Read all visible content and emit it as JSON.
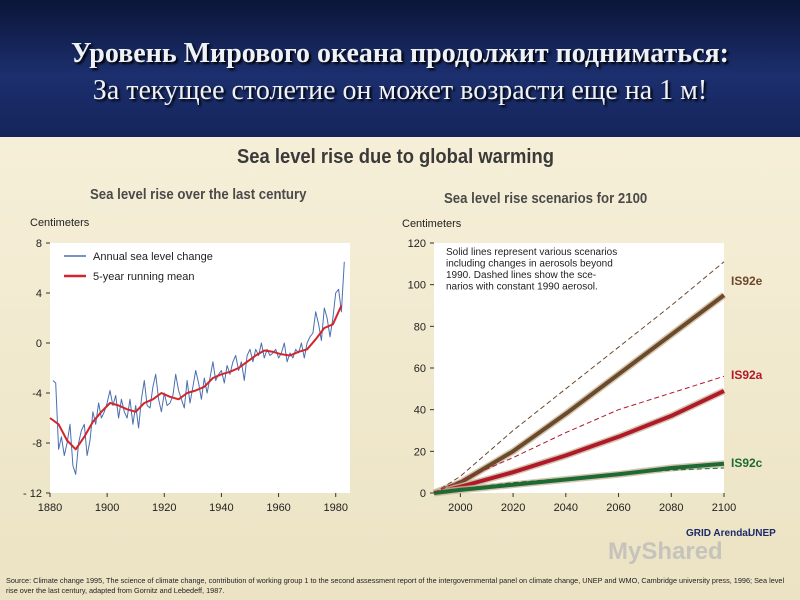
{
  "header": {
    "line1": "Уровень Мирового океана продолжит подниматься:",
    "line2": "За текущее столетие  он может возрасти еще на 1 м!"
  },
  "figure": {
    "title": "Sea level rise due to global warming",
    "source": "Source: Climate change 1995, The science of climate change, contribution of working group 1 to the second assessment report of the intergovernmental panel on climate change, UNEP and WMO, Cambridge university press,  1996; Sea level rise over the last century, adapted from Gornitz and Lebedeff, 1987.",
    "logo_text": "GRID Arendal",
    "logo_unep": "UNEP",
    "watermark": "MyShared"
  },
  "colors": {
    "left_annual": "#4a6fb0",
    "left_mean": "#d0262c",
    "is92e": "#6b4a2c",
    "is92a": "#b0192a",
    "is92c": "#1e6a34",
    "plot_bg": "#ffffff"
  },
  "chart_data": [
    {
      "type": "line",
      "title": "Sea level rise over the last century",
      "ylabel": "Centimeters",
      "xlabel": "",
      "xlim": [
        1880,
        1985
      ],
      "ylim": [
        -12,
        8
      ],
      "xticks": [
        1880,
        1900,
        1920,
        1940,
        1960,
        1980
      ],
      "yticks": [
        8,
        4,
        0,
        -4,
        -8,
        -12
      ],
      "ytick_labels": [
        "8",
        "4",
        "0",
        "-4",
        "-8",
        "- 12"
      ],
      "legend_position": "top-left",
      "grid": false,
      "series": [
        {
          "name": "Annual sea level change",
          "x": [
            1881,
            1882,
            1883,
            1884,
            1885,
            1886,
            1887,
            1888,
            1889,
            1890,
            1891,
            1892,
            1893,
            1894,
            1895,
            1896,
            1897,
            1898,
            1899,
            1900,
            1901,
            1902,
            1903,
            1904,
            1905,
            1906,
            1907,
            1908,
            1909,
            1910,
            1911,
            1912,
            1913,
            1914,
            1915,
            1916,
            1917,
            1918,
            1919,
            1920,
            1921,
            1922,
            1923,
            1924,
            1925,
            1926,
            1927,
            1928,
            1929,
            1930,
            1931,
            1932,
            1933,
            1934,
            1935,
            1936,
            1937,
            1938,
            1939,
            1940,
            1941,
            1942,
            1943,
            1944,
            1945,
            1946,
            1947,
            1948,
            1949,
            1950,
            1951,
            1952,
            1953,
            1954,
            1955,
            1956,
            1957,
            1958,
            1959,
            1960,
            1961,
            1962,
            1963,
            1964,
            1965,
            1966,
            1967,
            1968,
            1969,
            1970,
            1971,
            1972,
            1973,
            1974,
            1975,
            1976,
            1977,
            1978,
            1979,
            1980,
            1981,
            1982,
            1983
          ],
          "values": [
            -3,
            -3.2,
            -8.5,
            -7.5,
            -9,
            -8,
            -6.5,
            -9.8,
            -10.5,
            -8,
            -7,
            -6.5,
            -9,
            -7.8,
            -5.5,
            -6.5,
            -4.8,
            -6,
            -5.5,
            -4.8,
            -3.8,
            -5,
            -4.2,
            -6,
            -4.5,
            -5.5,
            -6,
            -4.5,
            -6.5,
            -5,
            -6.8,
            -4.5,
            -3,
            -5,
            -5.2,
            -3.5,
            -2.5,
            -4.5,
            -5.5,
            -4,
            -5,
            -4.8,
            -4.2,
            -2.5,
            -3.8,
            -4.5,
            -5.2,
            -3,
            -4.8,
            -3.5,
            -2.2,
            -3.2,
            -4.5,
            -2.8,
            -4,
            -2.8,
            -1.5,
            -3,
            -2.5,
            -2.2,
            -3.2,
            -1.8,
            -2.5,
            -1.5,
            -1,
            -2.2,
            -1.5,
            -3,
            -1,
            -0.5,
            -1.5,
            -0.5,
            -1,
            0,
            -1.2,
            -0.5,
            -1,
            -0.8,
            -0.5,
            -1.2,
            -0.8,
            0,
            -1.5,
            -0.8,
            -1.2,
            -0.5,
            -0.8,
            0,
            -1.2,
            0,
            0.5,
            0.8,
            2.5,
            1.5,
            0.2,
            2.8,
            2,
            0.5,
            2,
            4,
            4.3,
            2.5,
            6.5
          ]
        },
        {
          "name": "5-year running mean",
          "x": [
            1880,
            1883,
            1886,
            1889,
            1892,
            1895,
            1898,
            1901,
            1904,
            1907,
            1910,
            1913,
            1916,
            1919,
            1922,
            1925,
            1928,
            1931,
            1934,
            1937,
            1940,
            1943,
            1946,
            1949,
            1952,
            1955,
            1958,
            1961,
            1964,
            1967,
            1970,
            1973,
            1976,
            1979,
            1982
          ],
          "values": [
            -6,
            -6.5,
            -7.8,
            -8.5,
            -7.5,
            -6.3,
            -5.5,
            -4.8,
            -5,
            -5.3,
            -5.5,
            -4.8,
            -4.5,
            -4,
            -4.3,
            -4.5,
            -4,
            -3.8,
            -3.5,
            -2.8,
            -2.5,
            -2.3,
            -2,
            -1.5,
            -1,
            -0.6,
            -0.7,
            -0.9,
            -1,
            -0.7,
            -0.5,
            0.3,
            1.2,
            1.5,
            3
          ]
        }
      ]
    },
    {
      "type": "line",
      "title": "Sea level rise scenarios for 2100",
      "ylabel": "Centimeters",
      "xlabel": "",
      "xlim": [
        1990,
        2100
      ],
      "ylim": [
        0,
        120
      ],
      "xticks": [
        2000,
        2020,
        2040,
        2060,
        2080,
        2100
      ],
      "yticks": [
        0,
        20,
        40,
        60,
        80,
        100,
        120
      ],
      "annotation": "Solid lines represent various scenarios including changes in aerosols beyond 1990. Dashed lines show the scenarios with constant 1990 aerosol.",
      "annotation_lines": [
        "Solid lines represent various scenarios",
        "including changes in aerosols beyond",
        "1990. Dashed lines show the sce-",
        "narios with constant 1990 aerosol."
      ],
      "grid": false,
      "series": [
        {
          "name": "IS92e",
          "style": "solid",
          "x": [
            1990,
            2000,
            2020,
            2040,
            2060,
            2080,
            2100
          ],
          "values": [
            0,
            5,
            20,
            38,
            57,
            76,
            95
          ]
        },
        {
          "name": "IS92a",
          "style": "solid",
          "x": [
            1990,
            2000,
            2020,
            2040,
            2060,
            2080,
            2100
          ],
          "values": [
            0,
            3,
            10,
            18,
            27,
            37,
            49
          ]
        },
        {
          "name": "IS92c",
          "style": "solid",
          "x": [
            1990,
            2000,
            2020,
            2040,
            2060,
            2080,
            2100
          ],
          "values": [
            0,
            1.5,
            4,
            6.5,
            9,
            12,
            14
          ]
        },
        {
          "name": "IS92e",
          "style": "dashed",
          "x": [
            1990,
            2000,
            2020,
            2040,
            2060,
            2080,
            2100
          ],
          "values": [
            0,
            8,
            30,
            50,
            70,
            90,
            111
          ]
        },
        {
          "name": "IS92a",
          "style": "dashed",
          "x": [
            1990,
            2000,
            2020,
            2040,
            2060,
            2080,
            2100
          ],
          "values": [
            0,
            6,
            17,
            29,
            40,
            48,
            56
          ]
        },
        {
          "name": "IS92c",
          "style": "dashed",
          "x": [
            1990,
            2000,
            2020,
            2040,
            2060,
            2080,
            2100
          ],
          "values": [
            0,
            2,
            5,
            7,
            9,
            11,
            12
          ]
        }
      ]
    }
  ]
}
